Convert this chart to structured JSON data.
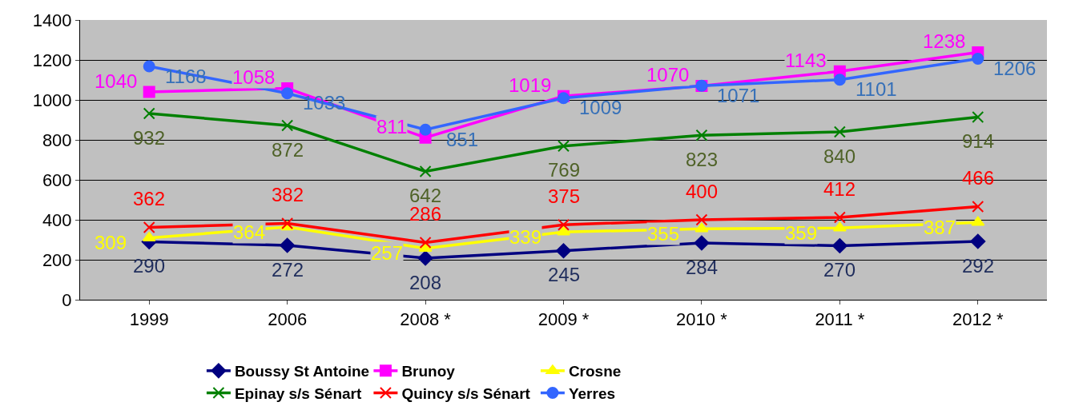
{
  "chart_data": {
    "type": "line",
    "categories": [
      "1999",
      "2006",
      "2008 *",
      "2009 *",
      "2010 *",
      "2011 *",
      "2012 *"
    ],
    "ylim": [
      0,
      1400
    ],
    "yticks": [
      0,
      200,
      400,
      600,
      800,
      1000,
      1200,
      1400
    ],
    "grid": "y",
    "legend": "bottom",
    "data_labels": true,
    "series": [
      {
        "name": "Boussy St Antoine",
        "color": "#000080",
        "marker": "diamond",
        "values": [
          290,
          272,
          208,
          245,
          284,
          270,
          292
        ]
      },
      {
        "name": "Brunoy",
        "color": "#ff00ff",
        "marker": "square",
        "values": [
          1040,
          1058,
          811,
          1019,
          1070,
          1143,
          1238
        ]
      },
      {
        "name": "Crosne",
        "color": "#ffff00",
        "marker": "triangle",
        "values": [
          309,
          364,
          257,
          339,
          355,
          359,
          387
        ]
      },
      {
        "name": "Epinay s/s Sénart",
        "color": "#008000",
        "marker": "cross",
        "values": [
          932,
          872,
          642,
          769,
          823,
          840,
          914
        ]
      },
      {
        "name": "Quincy s/s Sénart",
        "color": "#ff0000",
        "marker": "cross",
        "values": [
          362,
          382,
          286,
          375,
          400,
          412,
          466
        ]
      },
      {
        "name": "Yerres",
        "color": "#3366ff",
        "marker": "circle",
        "values": [
          1168,
          1033,
          851,
          1009,
          1071,
          1101,
          1206
        ]
      }
    ]
  }
}
